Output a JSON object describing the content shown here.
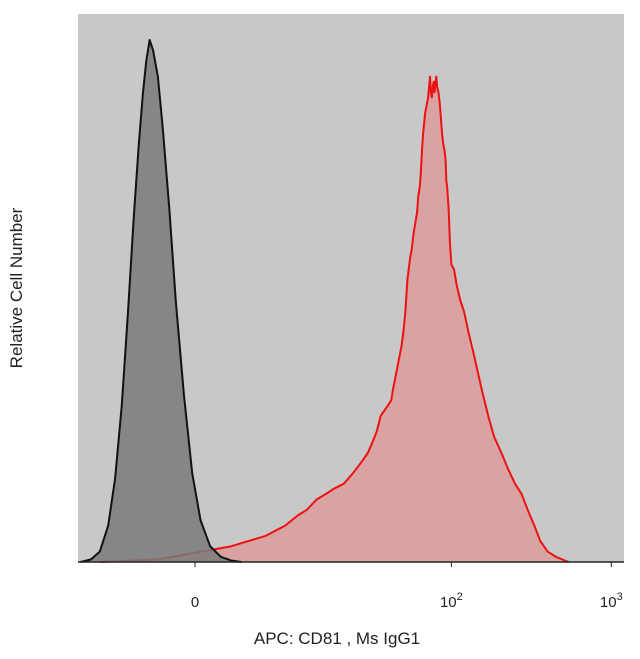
{
  "chart_data": {
    "type": "area",
    "title": "",
    "xlabel": "APC: CD81 , Ms IgG1",
    "ylabel": "Relative Cell Number",
    "x_scale": "biexponential",
    "xticks": [
      {
        "value": 0,
        "base": "0",
        "exp": ""
      },
      {
        "value": 100,
        "base": "10",
        "exp": "2"
      },
      {
        "value": 1000,
        "base": "10",
        "exp": "3"
      }
    ],
    "xlim": [
      -13,
      1200
    ],
    "ylim": [
      0,
      100
    ],
    "grid": false,
    "legend": "none",
    "background": "#c8c8c8",
    "series": [
      {
        "role": "isotype-control",
        "stroke": "#111111",
        "fill": "#7a7a7a",
        "points": [
          [
            -12.5,
            0
          ],
          [
            -10.6,
            0.5
          ],
          [
            -9.2,
            2
          ],
          [
            -8.0,
            7
          ],
          [
            -7.1,
            16
          ],
          [
            -6.3,
            30
          ],
          [
            -5.6,
            48
          ],
          [
            -5.0,
            66
          ],
          [
            -4.5,
            80
          ],
          [
            -4.1,
            90
          ],
          [
            -3.8,
            96
          ],
          [
            -3.5,
            100
          ],
          [
            -3.2,
            98
          ],
          [
            -2.8,
            93
          ],
          [
            -2.4,
            83
          ],
          [
            -1.9,
            68
          ],
          [
            -1.4,
            50
          ],
          [
            -0.8,
            32
          ],
          [
            -0.2,
            17
          ],
          [
            0.4,
            8
          ],
          [
            1.1,
            3
          ],
          [
            1.9,
            1
          ],
          [
            2.7,
            0.3
          ],
          [
            3.6,
            0
          ]
        ]
      },
      {
        "role": "CD81",
        "stroke": "#ee1111",
        "fill": "#d9a3a3",
        "points": [
          [
            -9.2,
            0
          ],
          [
            -2.8,
            0.5
          ],
          [
            2.7,
            3
          ],
          [
            6.0,
            5
          ],
          [
            8.5,
            7
          ],
          [
            10.5,
            9
          ],
          [
            12.0,
            10
          ],
          [
            14.0,
            12
          ],
          [
            16.0,
            13
          ],
          [
            18.0,
            14
          ],
          [
            21.0,
            15
          ],
          [
            24.0,
            17
          ],
          [
            27.0,
            19
          ],
          [
            30.0,
            21
          ],
          [
            32.0,
            23
          ],
          [
            34.0,
            25
          ],
          [
            36.0,
            28
          ],
          [
            38.0,
            29
          ],
          [
            40.0,
            30
          ],
          [
            42.0,
            31
          ],
          [
            43.0,
            33
          ],
          [
            45.0,
            36
          ],
          [
            47.0,
            39
          ],
          [
            48.5,
            41
          ],
          [
            50.0,
            44
          ],
          [
            51.5,
            48
          ],
          [
            53.0,
            54
          ],
          [
            55.0,
            58
          ],
          [
            56.5,
            60
          ],
          [
            58.0,
            63
          ],
          [
            59.5,
            65
          ],
          [
            61.0,
            67
          ],
          [
            62.0,
            70
          ],
          [
            63.5,
            72
          ],
          [
            64.5,
            75
          ],
          [
            65.5,
            79
          ],
          [
            66.5,
            82
          ],
          [
            67.5,
            84
          ],
          [
            68.5,
            86
          ],
          [
            69.5,
            87
          ],
          [
            70.5,
            88
          ],
          [
            71.5,
            89
          ],
          [
            72.5,
            91
          ],
          [
            73.5,
            93
          ],
          [
            74.5,
            90
          ],
          [
            75.5,
            89
          ],
          [
            76.5,
            91
          ],
          [
            77.5,
            92
          ],
          [
            78.5,
            90
          ],
          [
            79.5,
            92
          ],
          [
            80.5,
            93
          ],
          [
            81.5,
            91
          ],
          [
            83.0,
            90
          ],
          [
            84.5,
            88
          ],
          [
            86.0,
            85
          ],
          [
            87.5,
            82
          ],
          [
            89.0,
            80
          ],
          [
            90.5,
            79
          ],
          [
            92.0,
            77
          ],
          [
            93.0,
            73
          ],
          [
            94.0,
            72
          ],
          [
            95.0,
            70
          ],
          [
            96.0,
            68
          ],
          [
            98.0,
            61
          ],
          [
            100.0,
            57
          ],
          [
            104.0,
            56
          ],
          [
            108.0,
            53
          ],
          [
            114.0,
            50
          ],
          [
            120.0,
            48
          ],
          [
            128.0,
            44
          ],
          [
            140.0,
            39
          ],
          [
            155.0,
            33
          ],
          [
            170.0,
            28
          ],
          [
            185.0,
            24
          ],
          [
            205.0,
            21
          ],
          [
            225.0,
            18
          ],
          [
            250.0,
            15
          ],
          [
            275.0,
            13
          ],
          [
            300.0,
            10
          ],
          [
            330.0,
            7
          ],
          [
            360.0,
            4
          ],
          [
            400.0,
            2
          ],
          [
            450.0,
            1
          ],
          [
            540.0,
            0
          ]
        ]
      }
    ]
  }
}
